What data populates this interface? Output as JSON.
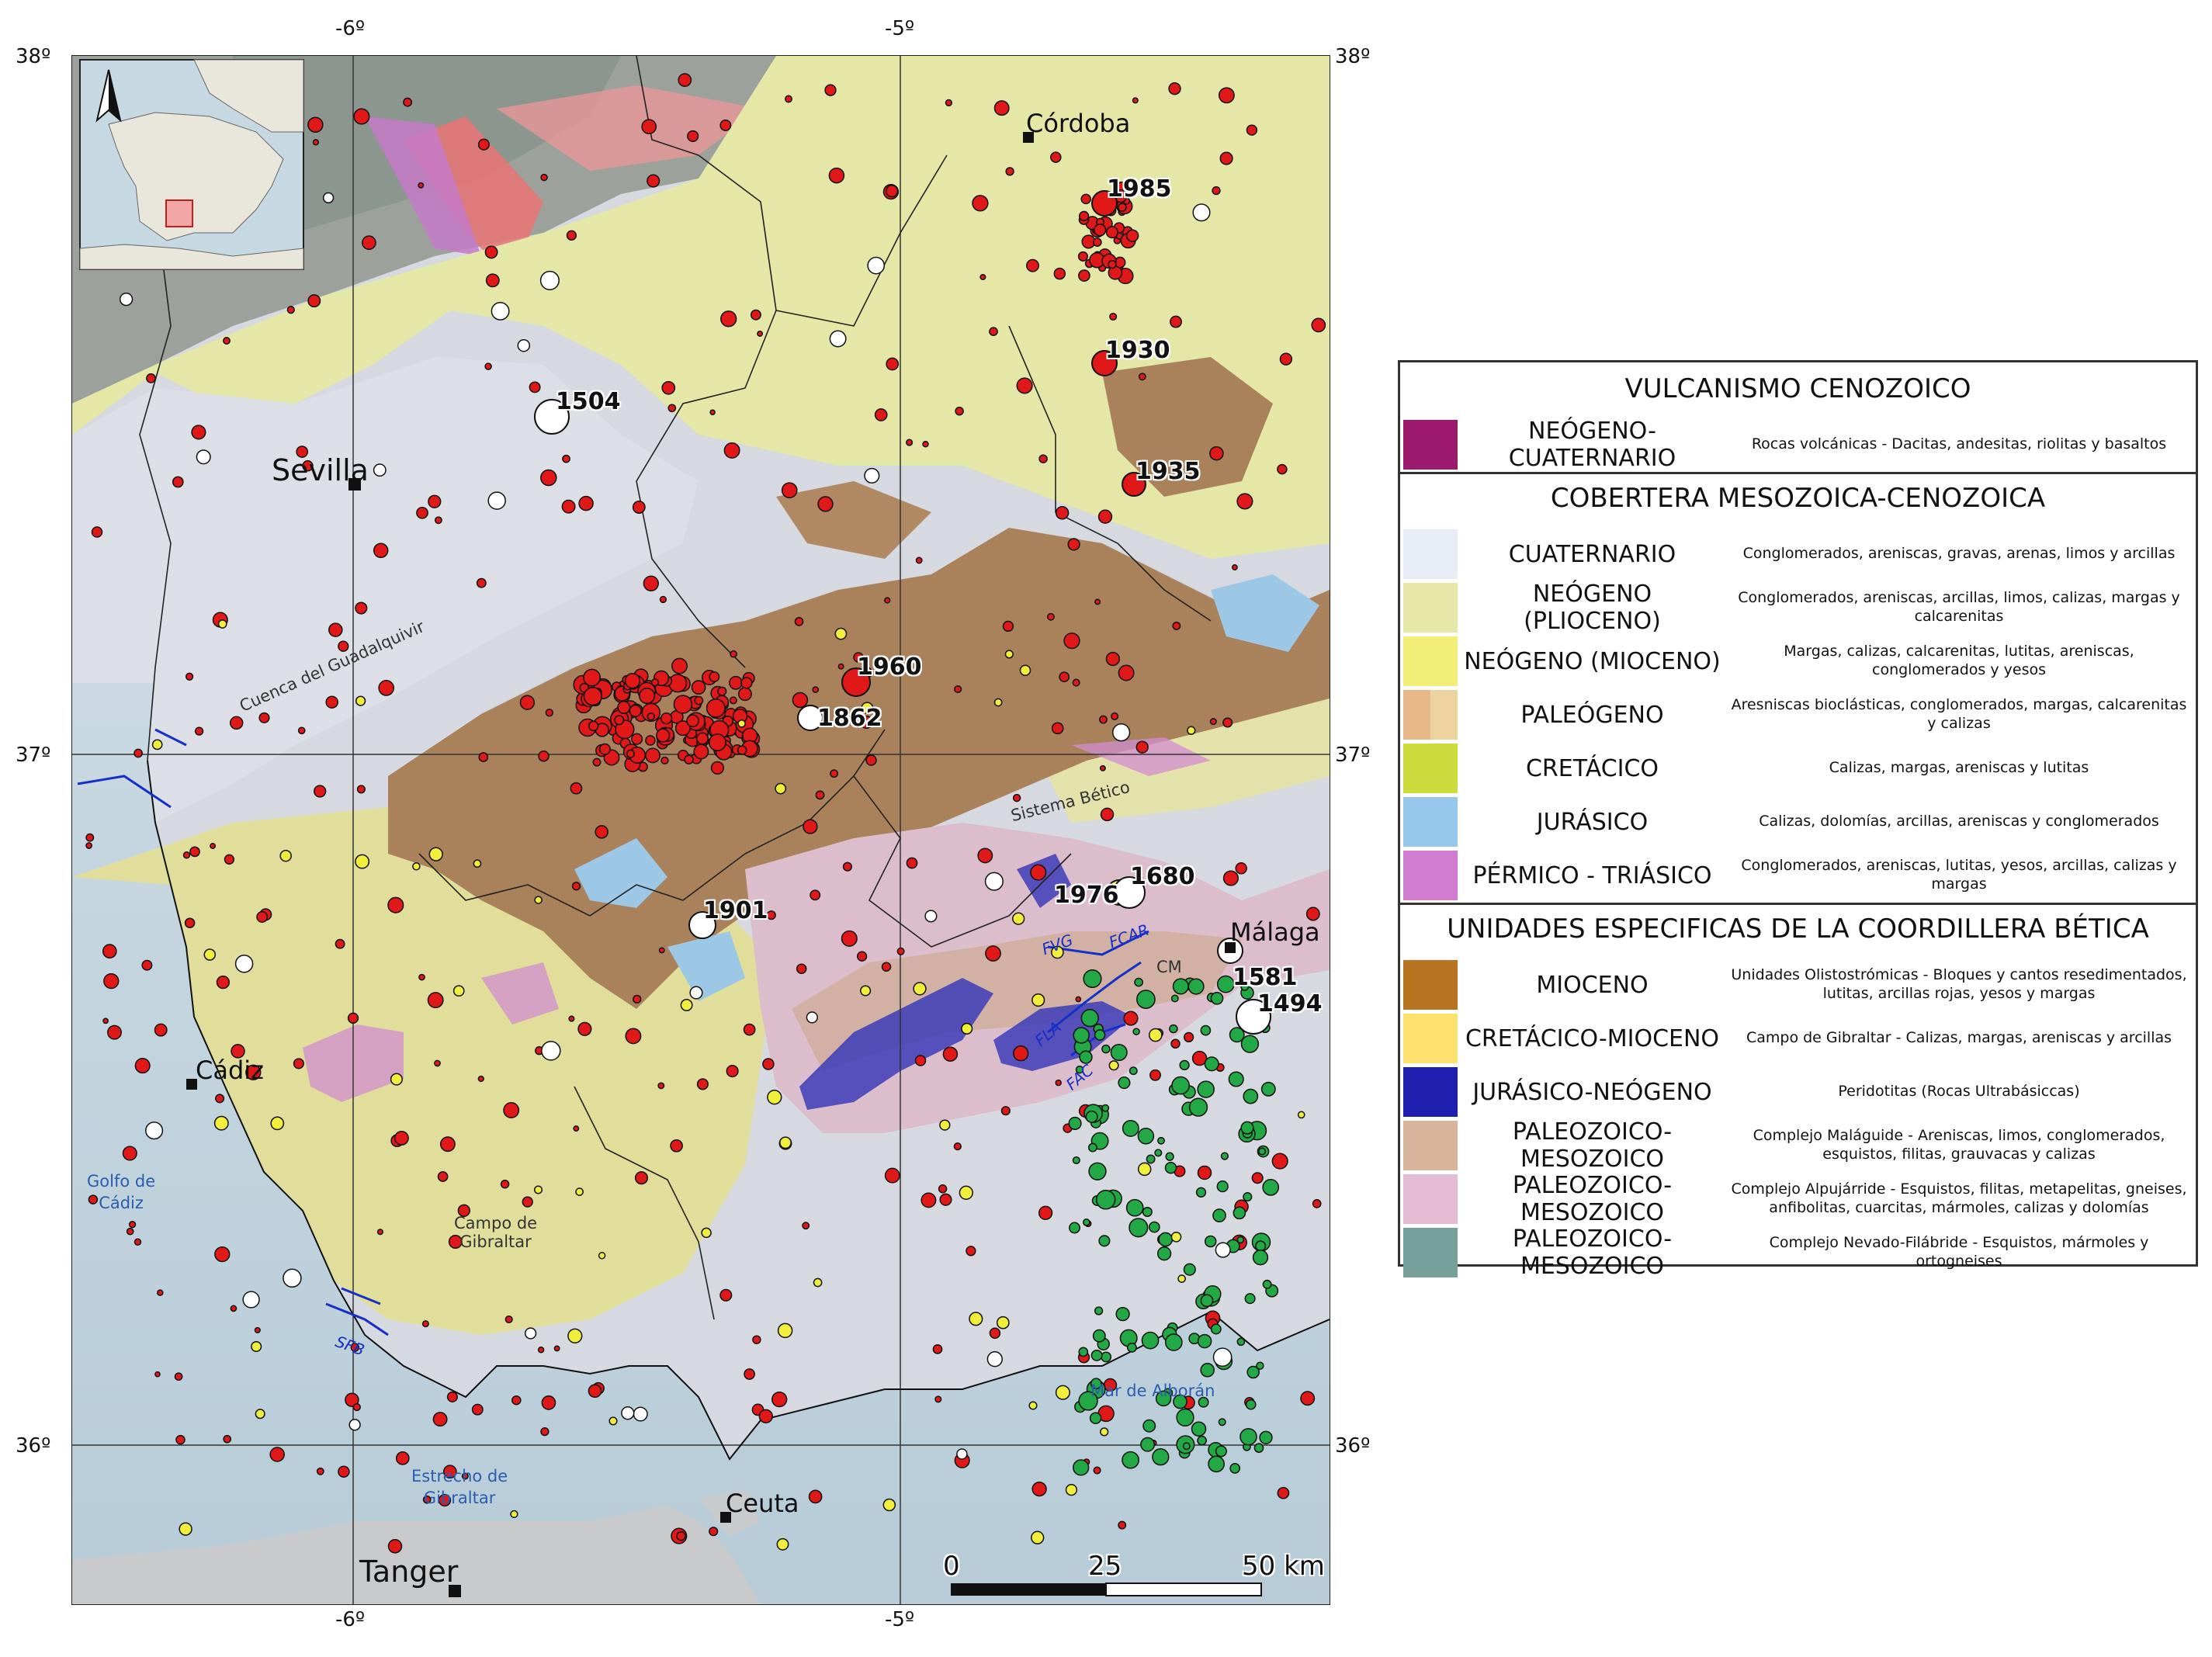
{
  "coords": {
    "lon_left": "-6º",
    "lon_right": "-5º",
    "lat_top": "38º",
    "lat_mid": "37º",
    "lat_bottom": "36º"
  },
  "places": {
    "cordoba": "Córdoba",
    "sevilla": "Sevilla",
    "malaga": "Málaga",
    "cadiz": "Cádiz",
    "ceuta": "Ceuta",
    "tanger": "Tanger"
  },
  "water": {
    "golfo": "Golfo de\nCádiz",
    "estrecho": "Estrecho de\nGibraltar",
    "alboran": "Mar de Alborán"
  },
  "regions": {
    "guadalquivir": "Cuenca del Guadalquivir",
    "betico": "Sistema Bético",
    "campo": "Campo de\nGibraltar"
  },
  "faults": {
    "fvg": "FVG",
    "fcar": "FCAR",
    "fla": "FLA",
    "fac": "FAC",
    "sfb": "SFB",
    "cm": "CM"
  },
  "earthquakes": [
    {
      "year": "1985"
    },
    {
      "year": "1930"
    },
    {
      "year": "1504"
    },
    {
      "year": "1935"
    },
    {
      "year": "1960"
    },
    {
      "year": "1862"
    },
    {
      "year": "1901"
    },
    {
      "year": "1976"
    },
    {
      "year": "1680"
    },
    {
      "year": "1581"
    },
    {
      "year": "1494"
    }
  ],
  "scale": {
    "zero": "0",
    "mid": "25",
    "end": "50 km"
  },
  "legend": {
    "sections": [
      {
        "title": "VULCANISMO CENOZOICO",
        "rows": [
          {
            "label": "NEÓGENO- CUATERNARIO",
            "desc": "Rocas volcánicas - Dacitas, andesitas, riolitas y basaltos",
            "color": "#9b1a6e"
          }
        ]
      },
      {
        "title": "COBERTERA MESOZOICA-CENOZOICA",
        "rows": [
          {
            "label": "CUATERNARIO",
            "desc": "Conglomerados, areniscas, gravas, arenas, limos y arcillas",
            "color": "#e8ecf4"
          },
          {
            "label": "NEÓGENO (PLIOCENO)",
            "desc": "Conglomerados, areniscas, arcillas, limos, calizas, margas y calcarenitas",
            "color": "#e6e8a8"
          },
          {
            "label": "NEÓGENO (MIOCENO)",
            "desc": "Margas, calizas, calcarenitas, lutitas, areniscas, conglomerados y yesos",
            "color": "#f2ee78"
          },
          {
            "label": "PALEÓGENO",
            "desc": "Aresniscas bioclásticas, conglomerados, margas, calcarenitas y calizas",
            "color": "#e8b888",
            "color2": "#ecd3a0"
          },
          {
            "label": "CRETÁCICO",
            "desc": "Calizas, margas, areniscas y lutitas",
            "color": "#ccdc3c"
          },
          {
            "label": "JURÁSICO",
            "desc": "Calizas, dolomías, arcillas, areniscas y conglomerados",
            "color": "#96c8ec"
          },
          {
            "label": "PÉRMICO - TRIÁSICO",
            "desc": "Conglomerados, areniscas, lutitas, yesos, arcillas, calizas y margas",
            "color": "#d07cd0"
          }
        ]
      },
      {
        "title": "UNIDADES ESPECIFICAS DE LA COORDILLERA BÉTICA",
        "rows": [
          {
            "label": "MIOCENO",
            "desc": "Unidades Olistostrómicas - Bloques y cantos resedimentados, lutitas, arcillas rojas, yesos y  margas",
            "color": "#b87420"
          },
          {
            "label": "CRETÁCICO-MIOCENO",
            "desc": "Campo de Gibraltar - Calizas, margas, areniscas y arcillas",
            "color": "#fde06e"
          },
          {
            "label": "JURÁSICO-NEÓGENO",
            "desc": "Peridotitas (Rocas Ultrabásiccas)",
            "color": "#2020b0"
          },
          {
            "label": "PALEOZOICO-MESOZOICO",
            "desc": "Complejo Maláguide - Areniscas, limos, conglomerados, esquistos, filitas, grauvacas y calizas",
            "color": "#d8b49c"
          },
          {
            "label": "PALEOZOICO-MESOZOICO",
            "desc": "Complejo Alpujárride - Esquistos, filitas, metapelitas, gneises, anfibolitas, cuarcitas, mármoles, calizas y dolomías",
            "color": "#e4bcd4"
          },
          {
            "label": "PALEOZOICO-MESOZOICO",
            "desc": "Complejo Nevado-Filábride - Esquistos, mármoles y ortogneises",
            "color": "#76a09a"
          }
        ]
      }
    ]
  }
}
